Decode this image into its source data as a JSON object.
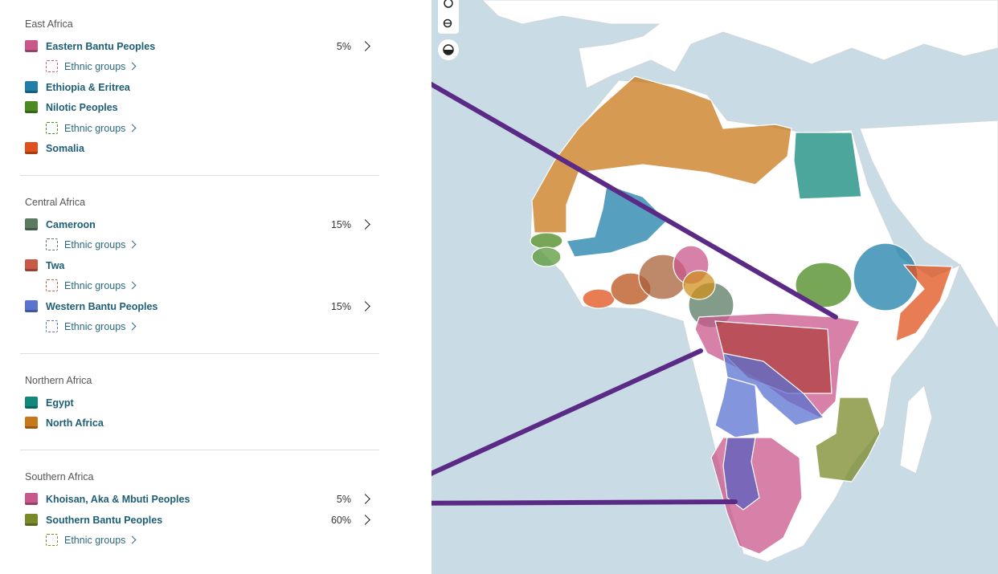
{
  "regions": [
    {
      "title": "East Africa",
      "items": [
        {
          "name": "Eastern Bantu Peoples",
          "color": "#c9578b",
          "percent": "5%",
          "sublink": "Ethnic groups"
        },
        {
          "name": "Ethiopia & Eritrea",
          "color": "#1f7fa8"
        },
        {
          "name": "Nilotic Peoples",
          "color": "#4a8a1e",
          "sublink": "Ethnic groups"
        },
        {
          "name": "Somalia",
          "color": "#e0501a"
        }
      ]
    },
    {
      "title": "Central Africa",
      "items": [
        {
          "name": "Cameroon",
          "color": "#5a7a62",
          "percent": "15%",
          "sublink": "Ethnic groups"
        },
        {
          "name": "Twa",
          "color": "#c85a48",
          "sublink": "Ethnic groups"
        },
        {
          "name": "Western Bantu Peoples",
          "color": "#5a72d0",
          "percent": "15%",
          "sublink": "Ethnic groups"
        }
      ]
    },
    {
      "title": "Northern Africa",
      "items": [
        {
          "name": "Egypt",
          "color": "#11887a"
        },
        {
          "name": "North Africa",
          "color": "#c8781a"
        }
      ]
    },
    {
      "title": "Southern Africa",
      "items": [
        {
          "name": "Khoisan, Aka & Mbuti Peoples",
          "color": "#c9578b",
          "percent": "5%"
        },
        {
          "name": "Southern Bantu Peoples",
          "color": "#7a8a2a",
          "percent": "60%",
          "sublink": "Ethnic groups"
        }
      ]
    }
  ]
}
